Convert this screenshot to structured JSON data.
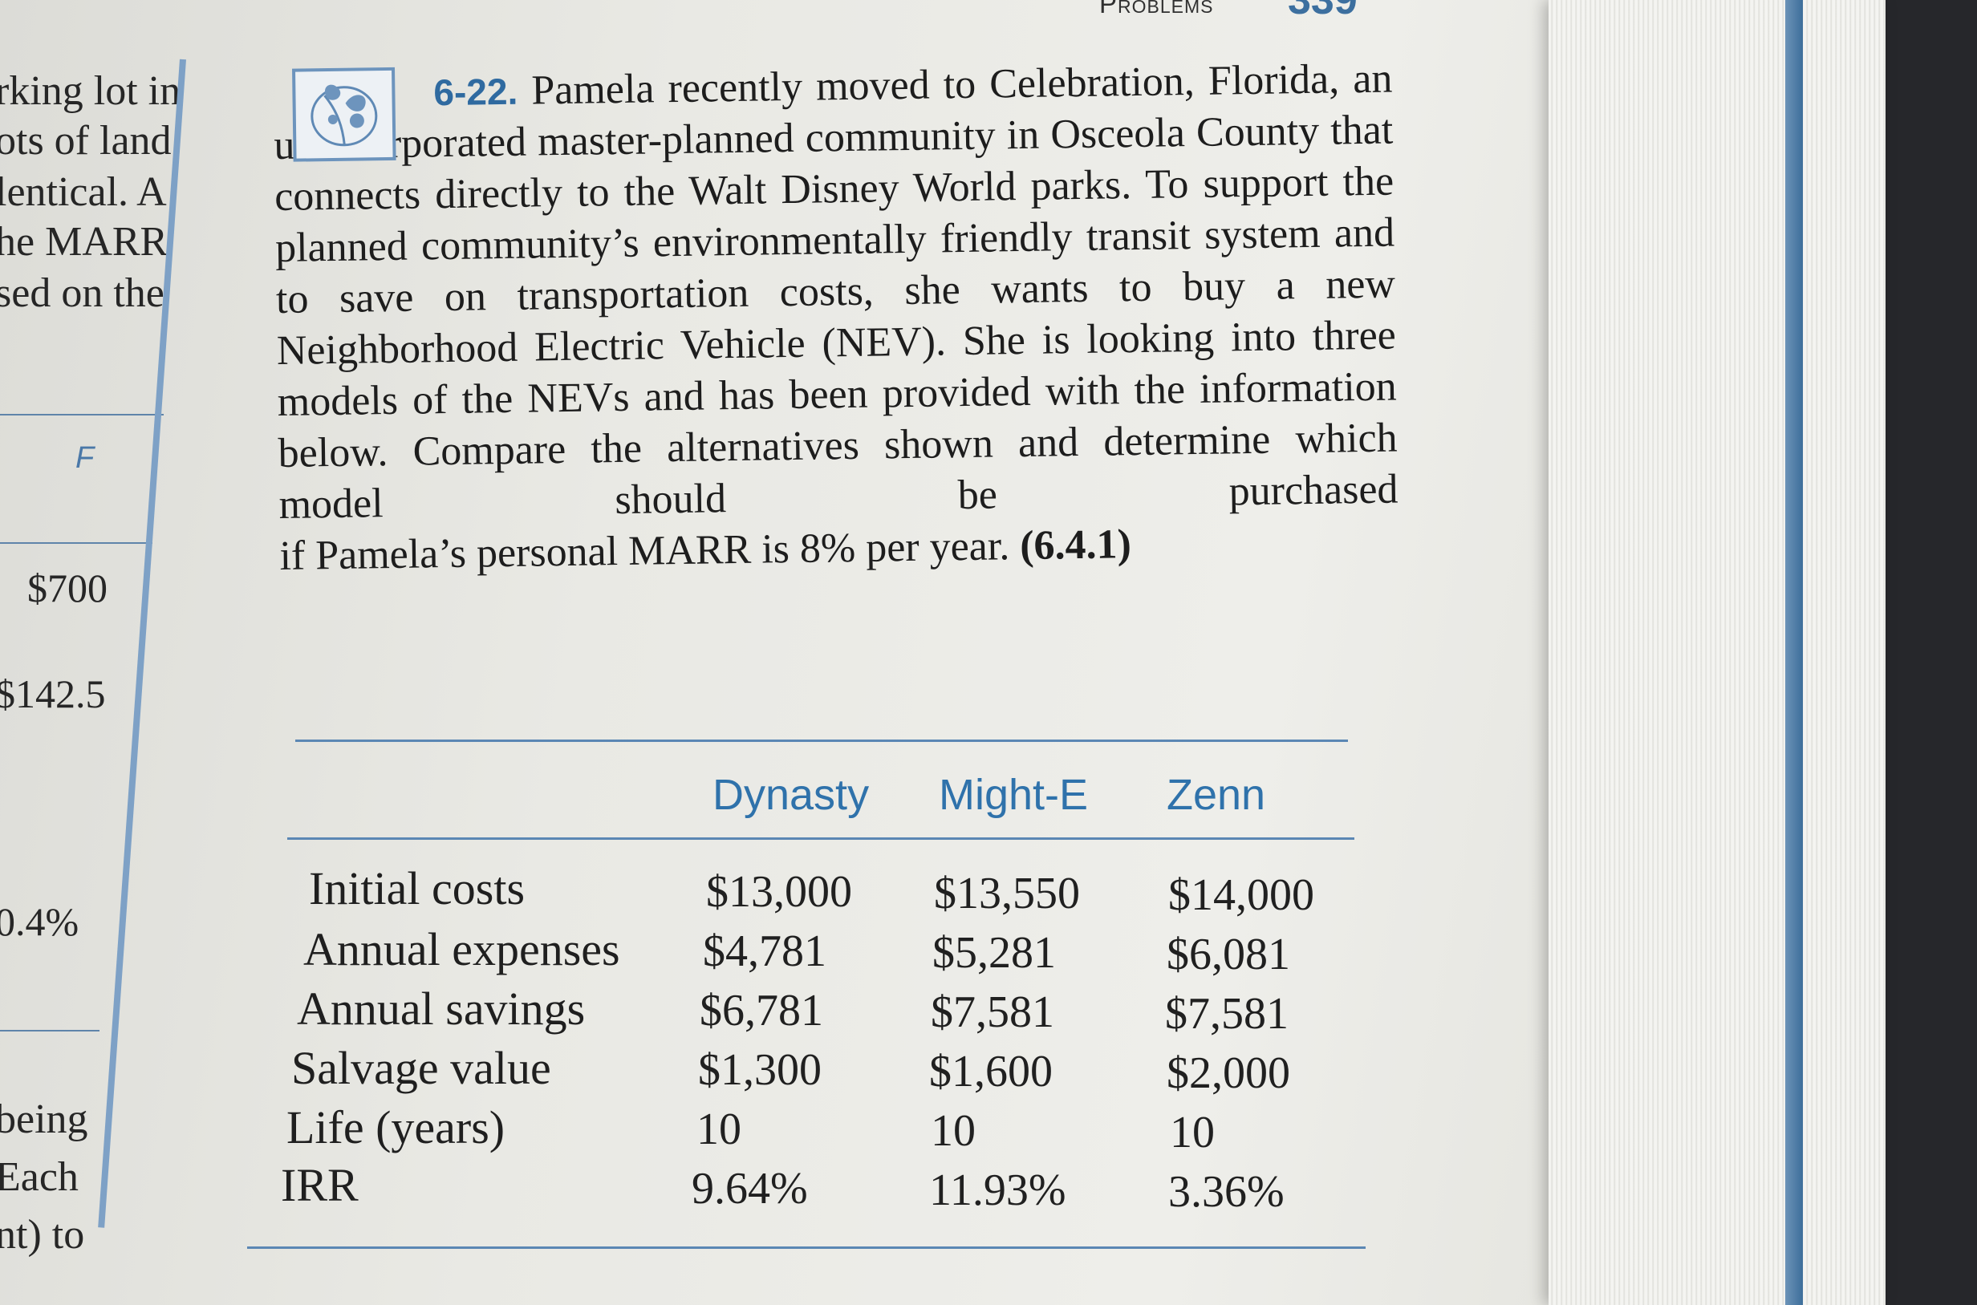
{
  "running_head": {
    "title": "Problems",
    "page_number": "339"
  },
  "left_column": {
    "text_lines": [
      "rking lot in",
      "ots of land,",
      "lentical. A",
      "he MARR",
      "sed on the"
    ],
    "column_label": "F",
    "values": [
      "$700",
      "$142.5",
      "0.4%"
    ],
    "tail_lines": [
      "being",
      "Each",
      "nt) to"
    ]
  },
  "problem": {
    "number": "6-22.",
    "body_lines": [
      "Pamela recently moved to Celebration,",
      "Florida, an unincorporated master-planned",
      "community in Osceola County that connects directly to",
      "the Walt Disney World parks. To support the planned",
      "community’s environmentally friendly transit system and",
      "to save on transportation costs, she wants to buy a new",
      "Neighborhood Electric Vehicle (NEV). She is looking",
      "into three models of the NEVs and has been provided",
      "with the information below. Compare the alternatives",
      "shown and determine which model should be purchased"
    ],
    "last_line": "if Pamela’s personal MARR is 8% per year.",
    "section_ref": "(6.4.1)"
  },
  "table": {
    "columns": [
      "Dynasty",
      "Might-E",
      "Zenn"
    ],
    "rows": [
      {
        "label": "Initial costs",
        "values": [
          "$13,000",
          "$13,550",
          "$14,000"
        ]
      },
      {
        "label": "Annual expenses",
        "values": [
          "$4,781",
          "$5,281",
          "$6,081"
        ]
      },
      {
        "label": "Annual savings",
        "values": [
          "$6,781",
          "$7,581",
          "$7,581"
        ]
      },
      {
        "label": "Salvage value",
        "values": [
          "$1,300",
          "$1,600",
          "$2,000"
        ]
      },
      {
        "label": "Life (years)",
        "values": [
          "10",
          "10",
          "10"
        ]
      },
      {
        "label": "IRR",
        "values": [
          "9.64%",
          "11.93%",
          "3.36%"
        ]
      }
    ]
  },
  "icons": {
    "problem_icon": "leaf-icon"
  },
  "colors": {
    "accent_blue": "#2f72ab",
    "rule_blue": "#5b87b4",
    "text": "#1d1d1d"
  }
}
